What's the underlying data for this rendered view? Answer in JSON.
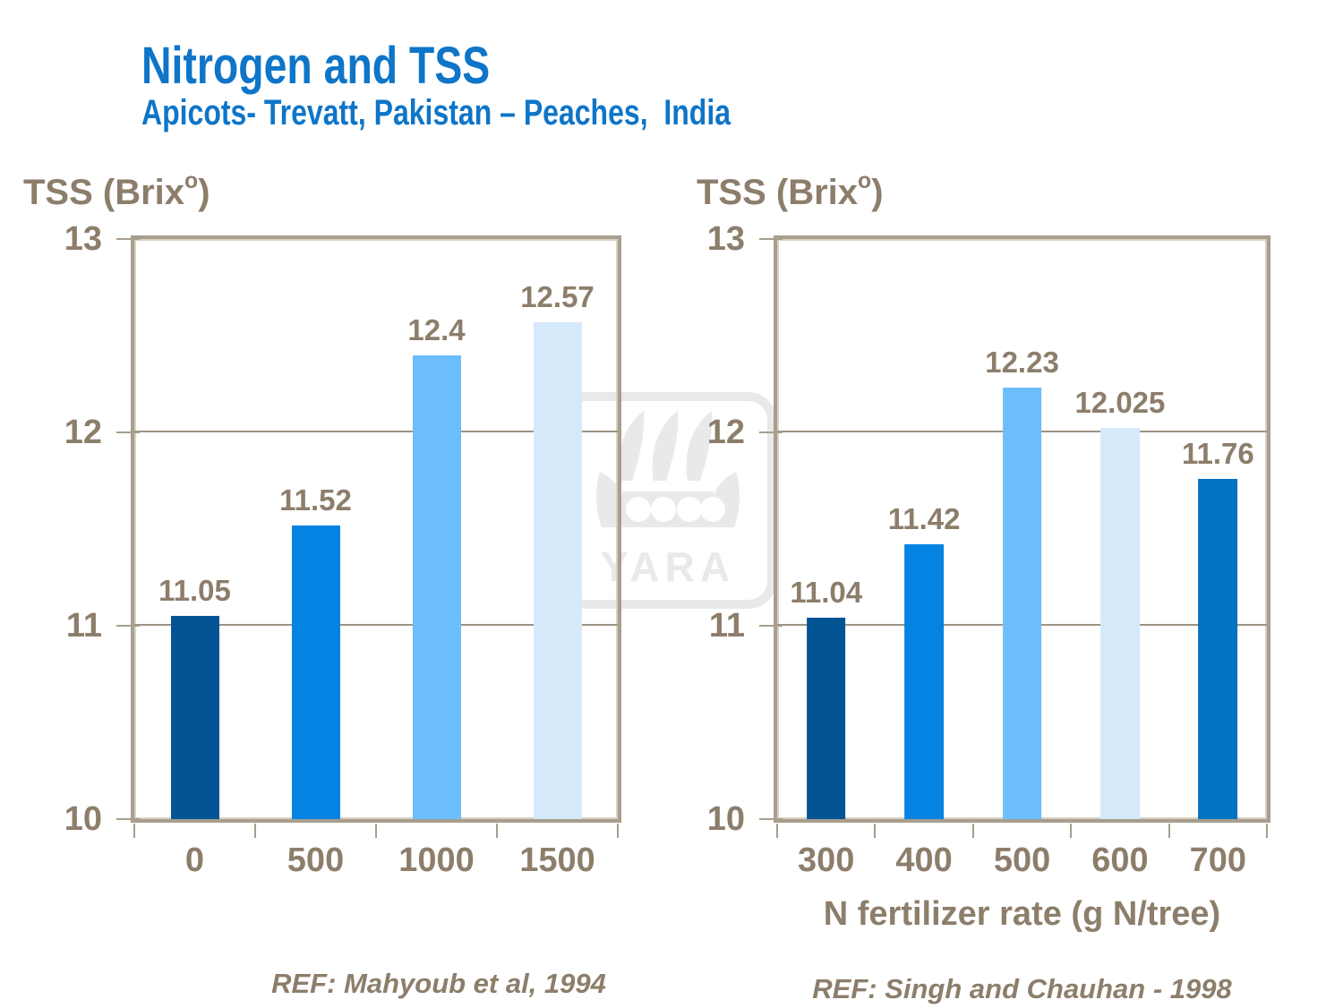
{
  "slide": {
    "title": "Nitrogen and TSS",
    "subtitle": "Apicots- Trevatt, Pakistan – Peaches,  India"
  },
  "watermark": {
    "icon": "viking-ship-icon",
    "wordmark": "YARA",
    "color": "#e9e9e9"
  },
  "colors": {
    "title_blue": "#0e75c8",
    "axis_text_brown": "#8c7e6b",
    "plot_border": "#a89e8e",
    "gridline": "#9d9384"
  },
  "chart_data": [
    {
      "type": "bar",
      "ylabel_prefix": "TSS (Brix",
      "ylabel_sup": "o",
      "ylabel_suffix": ")",
      "xlabel": "",
      "categories": [
        "0",
        "500",
        "1000",
        "1500"
      ],
      "values": [
        11.05,
        11.52,
        12.4,
        12.57
      ],
      "value_labels": [
        "11.05",
        "11.52",
        "12.4",
        "12.57"
      ],
      "bar_colors": [
        "#035494",
        "#0583e2",
        "#6cbdfb",
        "#d6e9fb"
      ],
      "ylim": [
        10,
        13
      ],
      "yticks": [
        10,
        11,
        12,
        13
      ],
      "grid": "horizontal-major",
      "legend": "none",
      "reference": "REF: Mahyoub et al, 1994"
    },
    {
      "type": "bar",
      "ylabel_prefix": "TSS (Brix",
      "ylabel_sup": "o",
      "ylabel_suffix": ")",
      "xlabel": "N fertilizer rate (g N/tree)",
      "categories": [
        "300",
        "400",
        "500",
        "600",
        "700"
      ],
      "values": [
        11.04,
        11.42,
        12.23,
        12.025,
        11.76
      ],
      "value_labels": [
        "11.04",
        "11.42",
        "12.23",
        "12.025",
        "11.76"
      ],
      "bar_colors": [
        "#035494",
        "#0583e2",
        "#6cbdfb",
        "#d6e9fb",
        "#0272c3"
      ],
      "ylim": [
        10,
        13
      ],
      "yticks": [
        10,
        11,
        12,
        13
      ],
      "grid": "horizontal-major",
      "legend": "none",
      "reference": "REF: Singh and Chauhan - 1998"
    }
  ]
}
